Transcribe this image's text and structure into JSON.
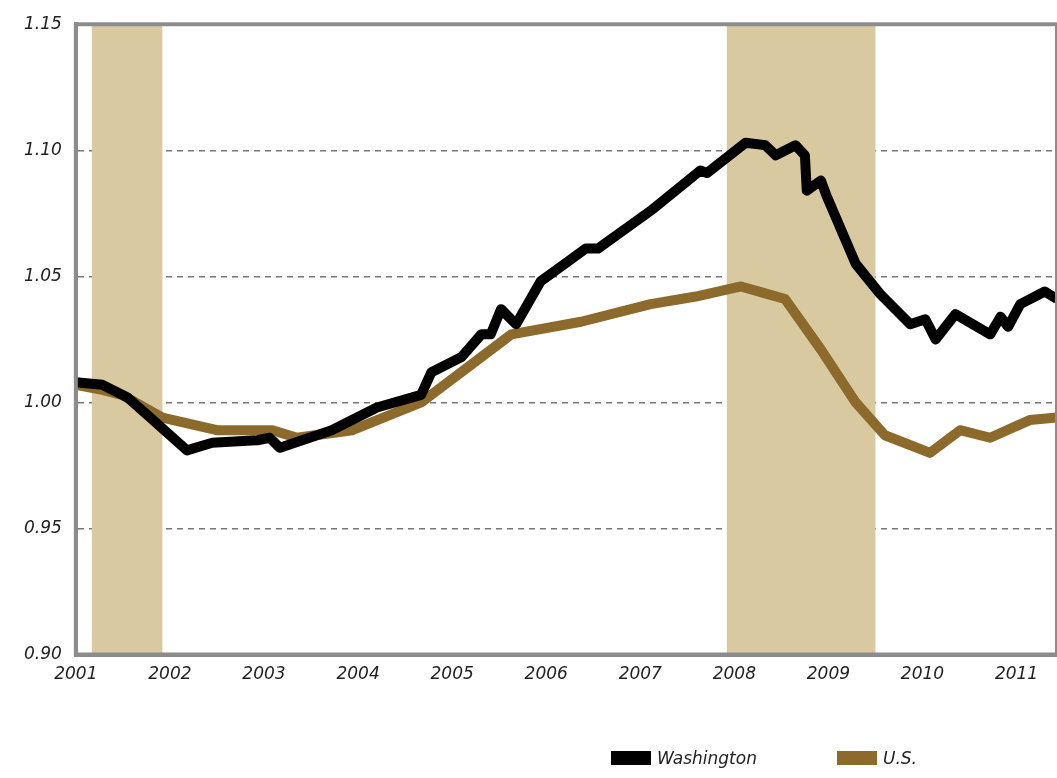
{
  "chart_data": {
    "type": "line",
    "xlim": [
      2001,
      2011.43
    ],
    "xticks": [
      2001,
      2002,
      2003,
      2004,
      2005,
      2006,
      2007,
      2008,
      2009,
      2010,
      2011
    ],
    "ylim": [
      0.9,
      1.15
    ],
    "yticks": [
      {
        "value": 0.9,
        "label": "0.90"
      },
      {
        "value": 0.95,
        "label": "0.95"
      },
      {
        "value": 1.0,
        "label": "1.00"
      },
      {
        "value": 1.05,
        "label": "1.05"
      },
      {
        "value": 1.1,
        "label": "1.10"
      },
      {
        "value": 1.15,
        "label": "1.15"
      }
    ],
    "grid": "y",
    "legend": "bottom",
    "marker": "none",
    "line_style": "solid",
    "bands": [
      {
        "axis": "x",
        "from": 2001.17,
        "to": 2001.92,
        "color": "#d9c9a0"
      },
      {
        "axis": "x",
        "from": 2007.92,
        "to": 2009.5,
        "color": "#d9c9a0"
      }
    ],
    "series": [
      {
        "name": "Washington",
        "color": "#000000",
        "x": [
          2001.0,
          2001.28,
          2001.55,
          2001.79,
          2002.18,
          2002.45,
          2002.93,
          2003.06,
          2003.17,
          2003.72,
          2004.2,
          2004.67,
          2004.78,
          2005.1,
          2005.31,
          2005.41,
          2005.52,
          2005.68,
          2005.94,
          2006.42,
          2006.55,
          2007.11,
          2007.64,
          2007.71,
          2008.12,
          2008.33,
          2008.44,
          2008.65,
          2008.75,
          2008.77,
          2008.92,
          2008.98,
          2009.29,
          2009.55,
          2009.87,
          2010.03,
          2010.14,
          2010.35,
          2010.72,
          2010.83,
          2010.91,
          2011.04,
          2011.3,
          2011.43
        ],
        "values": [
          1.008,
          1.007,
          1.002,
          0.994,
          0.981,
          0.984,
          0.985,
          0.986,
          0.982,
          0.989,
          0.998,
          1.003,
          1.012,
          1.018,
          1.027,
          1.027,
          1.037,
          1.031,
          1.048,
          1.061,
          1.061,
          1.076,
          1.092,
          1.091,
          1.103,
          1.102,
          1.098,
          1.102,
          1.098,
          1.084,
          1.088,
          1.082,
          1.055,
          1.043,
          1.031,
          1.033,
          1.025,
          1.035,
          1.027,
          1.034,
          1.03,
          1.039,
          1.044,
          1.041
        ]
      },
      {
        "name": "U.S.",
        "color": "#8b6a2b",
        "x": [
          2001.0,
          2001.28,
          2001.49,
          2001.92,
          2002.5,
          2003.09,
          2003.35,
          2003.94,
          2004.67,
          2005.63,
          2006.37,
          2007.11,
          2007.59,
          2008.07,
          2008.54,
          2008.92,
          2009.29,
          2009.6,
          2010.08,
          2010.4,
          2010.72,
          2011.14,
          2011.43
        ],
        "values": [
          1.007,
          1.005,
          1.003,
          0.994,
          0.989,
          0.989,
          0.986,
          0.989,
          1.0,
          1.027,
          1.032,
          1.039,
          1.042,
          1.046,
          1.041,
          1.021,
          1.0,
          0.987,
          0.98,
          0.989,
          0.986,
          0.993,
          0.994
        ]
      }
    ]
  }
}
